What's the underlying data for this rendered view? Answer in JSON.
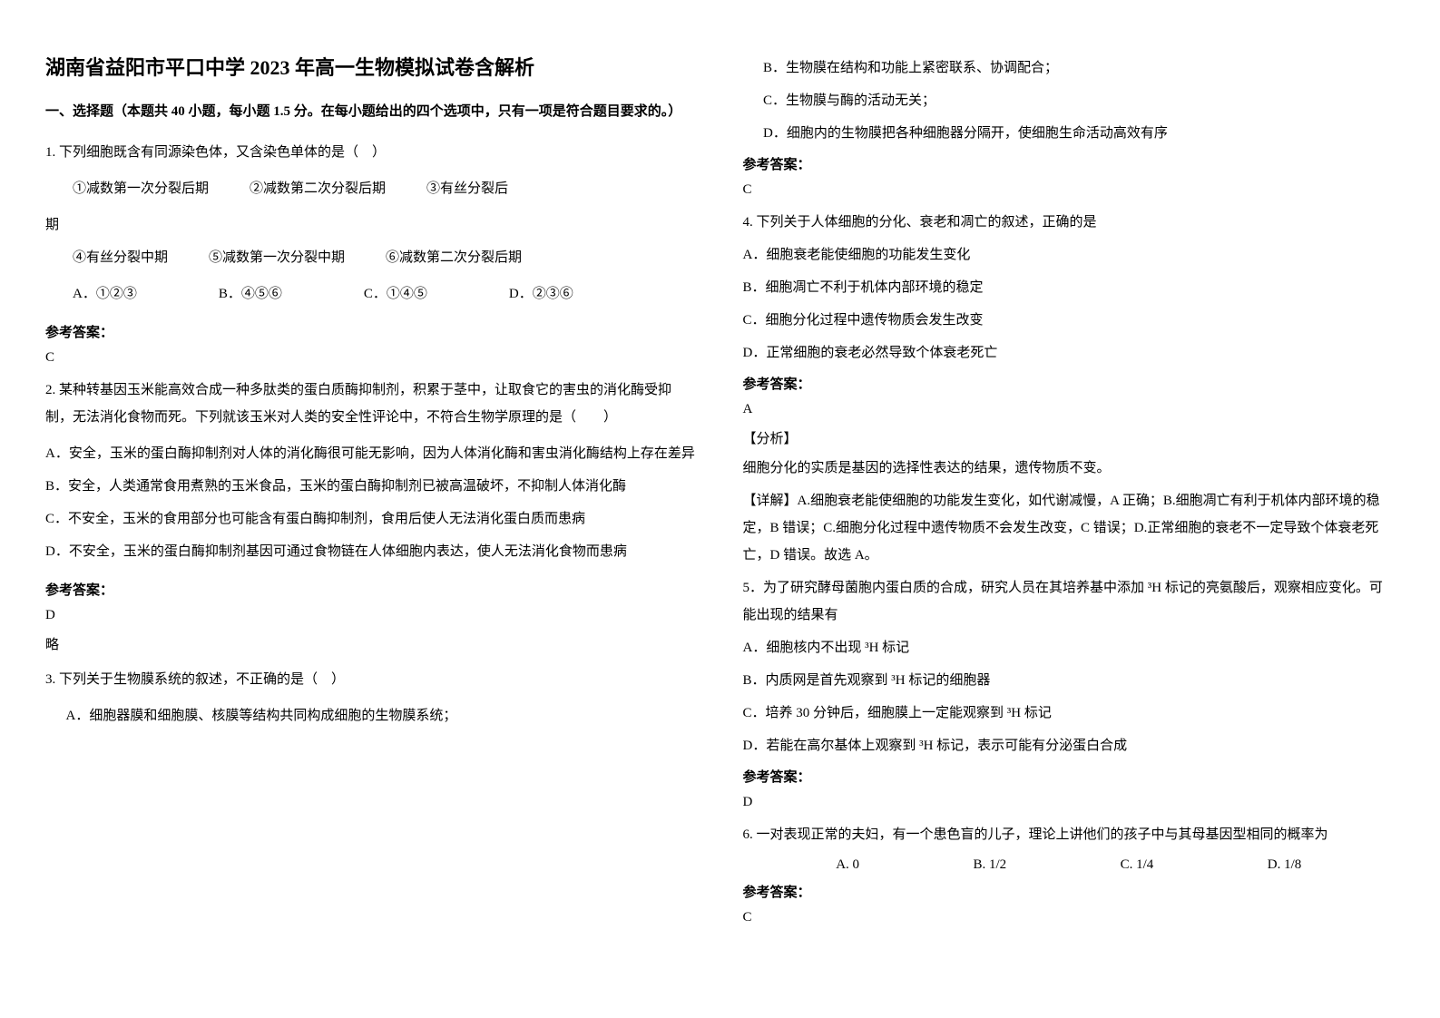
{
  "title": "湖南省益阳市平口中学 2023 年高一生物模拟试卷含解析",
  "section_header": "一、选择题（本题共 40 小题，每小题 1.5 分。在每小题给出的四个选项中，只有一项是符合题目要求的。）",
  "q1": {
    "stem": "1. 下列细胞既含有同源染色体，又含染色单体的是（　）",
    "line1": "①减数第一次分裂后期　　　②减数第二次分裂后期　　　③有丝分裂后",
    "line1_cont": "期",
    "line2": "④有丝分裂中期　　　⑤减数第一次分裂中期　　　⑥减数第二次分裂后期",
    "optA": "A．①②③",
    "optB": "B．④⑤⑥",
    "optC": "C．①④⑤",
    "optD": "D．②③⑥",
    "answer_label": "参考答案：",
    "answer": "C"
  },
  "q2": {
    "stem": "2. 某种转基因玉米能高效合成一种多肽类的蛋白质酶抑制剂，积累于茎中，让取食它的害虫的消化酶受抑制，无法消化食物而死。下列就该玉米对人类的安全性评论中，不符合生物学原理的是（　　）",
    "optA": "A．安全，玉米的蛋白酶抑制剂对人体的消化酶很可能无影响，因为人体消化酶和害虫消化酶结构上存在差异",
    "optB": "B．安全，人类通常食用煮熟的玉米食品，玉米的蛋白酶抑制剂已被高温破坏，不抑制人体消化酶",
    "optC": "C．不安全，玉米的食用部分也可能含有蛋白酶抑制剂，食用后使人无法消化蛋白质而患病",
    "optD": "D．不安全，玉米的蛋白酶抑制剂基因可通过食物链在人体细胞内表达，使人无法消化食物而患病",
    "answer_label": "参考答案：",
    "answer": "D",
    "note": "略"
  },
  "q3": {
    "stem": "3. 下列关于生物膜系统的叙述，不正确的是（　）",
    "optA": "A．细胞器膜和细胞膜、核膜等结构共同构成细胞的生物膜系统；",
    "optB": "B．生物膜在结构和功能上紧密联系、协调配合；",
    "optC": "C．生物膜与酶的活动无关；",
    "optD": "D．细胞内的生物膜把各种细胞器分隔开，使细胞生命活动高效有序",
    "answer_label": "参考答案：",
    "answer": "C"
  },
  "q4": {
    "stem": "4. 下列关于人体细胞的分化、衰老和凋亡的叙述，正确的是",
    "optA": "A．细胞衰老能使细胞的功能发生变化",
    "optB": "B．细胞凋亡不利于机体内部环境的稳定",
    "optC": "C．细胞分化过程中遗传物质会发生改变",
    "optD": "D．正常细胞的衰老必然导致个体衰老死亡",
    "answer_label": "参考答案：",
    "answer": "A",
    "analysis_label": "【分析】",
    "analysis_text1": "细胞分化的实质是基因的选择性表达的结果，遗传物质不变。",
    "analysis_text2": "【详解】A.细胞衰老能使细胞的功能发生变化，如代谢减慢，A 正确；B.细胞凋亡有利于机体内部环境的稳定，B 错误；C.细胞分化过程中遗传物质不会发生改变，C 错误；D.正常细胞的衰老不一定导致个体衰老死亡，D 错误。故选 A。"
  },
  "q5": {
    "stem": "5．为了研究酵母菌胞内蛋白质的合成，研究人员在其培养基中添加 ³H 标记的亮氨酸后，观察相应变化。可能出现的结果有",
    "optA": "A．细胞核内不出现 ³H 标记",
    "optB": "B．内质网是首先观察到 ³H 标记的细胞器",
    "optC": "C．培养 30 分钟后，细胞膜上一定能观察到 ³H 标记",
    "optD": "D．若能在高尔基体上观察到 ³H 标记，表示可能有分泌蛋白合成",
    "answer_label": "参考答案：",
    "answer": "D"
  },
  "q6": {
    "stem": "6. 一对表现正常的夫妇，有一个患色盲的儿子，理论上讲他们的孩子中与其母基因型相同的概率为",
    "optA": "A. 0",
    "optB": "B. 1/2",
    "optC": "C. 1/4",
    "optD": "D. 1/8",
    "answer_label": "参考答案：",
    "answer": "C"
  }
}
